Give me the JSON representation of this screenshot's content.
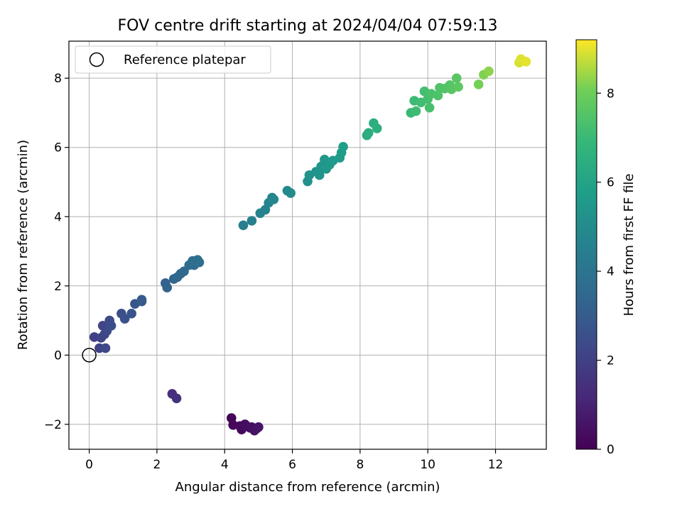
{
  "chart_data": {
    "type": "scatter",
    "title": "FOV centre drift starting at 2024/04/04 07:59:13",
    "xlabel": "Angular distance from reference (arcmin)",
    "ylabel": "Rotation from reference (arcmin)",
    "xlim": [
      -0.6,
      13.5
    ],
    "ylim": [
      -2.72,
      9.07
    ],
    "xticks": [
      0,
      2,
      4,
      6,
      8,
      10,
      12
    ],
    "yticks": [
      -2,
      0,
      2,
      4,
      6,
      8
    ],
    "xtick_labels": [
      "0",
      "2",
      "4",
      "6",
      "8",
      "10",
      "12"
    ],
    "ytick_labels": [
      "−2",
      "0",
      "2",
      "4",
      "6",
      "8"
    ],
    "grid": true,
    "legend": {
      "position": "upper-left",
      "entries": [
        {
          "label": "Reference platepar",
          "marker": "open-circle",
          "x": 0,
          "y": 0
        }
      ]
    },
    "colorbar": {
      "label": "Hours from first FF file",
      "colormap": "viridis",
      "range": [
        0,
        9.2
      ],
      "ticks": [
        0,
        2,
        4,
        6,
        8
      ],
      "tick_labels": [
        "0",
        "2",
        "4",
        "6",
        "8"
      ]
    },
    "points": [
      {
        "x": 4.2,
        "y": -1.82,
        "t": 0.1
      },
      {
        "x": 4.25,
        "y": -2.02,
        "t": 0.15
      },
      {
        "x": 4.45,
        "y": -2.05,
        "t": 0.2
      },
      {
        "x": 4.5,
        "y": -2.15,
        "t": 0.25
      },
      {
        "x": 4.6,
        "y": -2.0,
        "t": 0.3
      },
      {
        "x": 4.65,
        "y": -2.05,
        "t": 0.35
      },
      {
        "x": 4.75,
        "y": -2.1,
        "t": 0.4
      },
      {
        "x": 4.8,
        "y": -2.08,
        "t": 0.45
      },
      {
        "x": 4.88,
        "y": -2.18,
        "t": 0.5
      },
      {
        "x": 4.95,
        "y": -2.12,
        "t": 0.55
      },
      {
        "x": 5.0,
        "y": -2.08,
        "t": 0.6
      },
      {
        "x": 2.45,
        "y": -1.12,
        "t": 1.4
      },
      {
        "x": 2.58,
        "y": -1.25,
        "t": 1.5
      },
      {
        "x": 0.15,
        "y": 0.52,
        "t": 2.0
      },
      {
        "x": 0.3,
        "y": 0.2,
        "t": 2.05
      },
      {
        "x": 0.35,
        "y": 0.5,
        "t": 2.1
      },
      {
        "x": 0.4,
        "y": 0.85,
        "t": 2.15
      },
      {
        "x": 0.45,
        "y": 0.6,
        "t": 2.2
      },
      {
        "x": 0.48,
        "y": 0.2,
        "t": 2.25
      },
      {
        "x": 0.52,
        "y": 0.7,
        "t": 2.3
      },
      {
        "x": 0.6,
        "y": 1.0,
        "t": 2.4
      },
      {
        "x": 0.65,
        "y": 0.85,
        "t": 2.45
      },
      {
        "x": 0.95,
        "y": 1.2,
        "t": 2.55
      },
      {
        "x": 1.05,
        "y": 1.05,
        "t": 2.6
      },
      {
        "x": 1.25,
        "y": 1.2,
        "t": 2.7
      },
      {
        "x": 1.35,
        "y": 1.48,
        "t": 2.8
      },
      {
        "x": 1.55,
        "y": 1.6,
        "t": 2.9
      },
      {
        "x": 1.55,
        "y": 1.55,
        "t": 2.95
      },
      {
        "x": 2.25,
        "y": 2.08,
        "t": 3.2
      },
      {
        "x": 2.3,
        "y": 1.95,
        "t": 3.25
      },
      {
        "x": 2.5,
        "y": 2.2,
        "t": 3.35
      },
      {
        "x": 2.6,
        "y": 2.25,
        "t": 3.4
      },
      {
        "x": 2.7,
        "y": 2.35,
        "t": 3.45
      },
      {
        "x": 2.8,
        "y": 2.42,
        "t": 3.5
      },
      {
        "x": 2.95,
        "y": 2.6,
        "t": 3.6
      },
      {
        "x": 3.05,
        "y": 2.72,
        "t": 3.65
      },
      {
        "x": 3.1,
        "y": 2.6,
        "t": 3.7
      },
      {
        "x": 3.2,
        "y": 2.75,
        "t": 3.75
      },
      {
        "x": 3.25,
        "y": 2.68,
        "t": 3.8
      },
      {
        "x": 4.55,
        "y": 3.75,
        "t": 4.4
      },
      {
        "x": 4.8,
        "y": 3.88,
        "t": 4.5
      },
      {
        "x": 5.05,
        "y": 4.1,
        "t": 4.6
      },
      {
        "x": 5.2,
        "y": 4.2,
        "t": 4.65
      },
      {
        "x": 5.3,
        "y": 4.4,
        "t": 4.7
      },
      {
        "x": 5.4,
        "y": 4.55,
        "t": 4.75
      },
      {
        "x": 5.45,
        "y": 4.5,
        "t": 4.8
      },
      {
        "x": 5.85,
        "y": 4.75,
        "t": 4.9
      },
      {
        "x": 5.95,
        "y": 4.68,
        "t": 4.95
      },
      {
        "x": 6.45,
        "y": 5.02,
        "t": 5.2
      },
      {
        "x": 6.5,
        "y": 5.2,
        "t": 5.25
      },
      {
        "x": 6.7,
        "y": 5.3,
        "t": 5.3
      },
      {
        "x": 6.8,
        "y": 5.2,
        "t": 5.35
      },
      {
        "x": 6.85,
        "y": 5.45,
        "t": 5.4
      },
      {
        "x": 6.95,
        "y": 5.65,
        "t": 5.45
      },
      {
        "x": 7.0,
        "y": 5.38,
        "t": 5.5
      },
      {
        "x": 7.1,
        "y": 5.5,
        "t": 5.55
      },
      {
        "x": 7.2,
        "y": 5.62,
        "t": 5.6
      },
      {
        "x": 7.4,
        "y": 5.7,
        "t": 5.65
      },
      {
        "x": 7.45,
        "y": 5.85,
        "t": 5.7
      },
      {
        "x": 7.5,
        "y": 6.02,
        "t": 5.75
      },
      {
        "x": 8.2,
        "y": 6.35,
        "t": 6.4
      },
      {
        "x": 8.25,
        "y": 6.42,
        "t": 6.45
      },
      {
        "x": 8.4,
        "y": 6.7,
        "t": 6.5
      },
      {
        "x": 8.5,
        "y": 6.55,
        "t": 6.55
      },
      {
        "x": 9.5,
        "y": 7.0,
        "t": 7.0
      },
      {
        "x": 9.6,
        "y": 7.35,
        "t": 7.05
      },
      {
        "x": 9.65,
        "y": 7.05,
        "t": 7.1
      },
      {
        "x": 9.8,
        "y": 7.3,
        "t": 7.15
      },
      {
        "x": 9.9,
        "y": 7.62,
        "t": 7.2
      },
      {
        "x": 10.0,
        "y": 7.4,
        "t": 7.25
      },
      {
        "x": 10.05,
        "y": 7.15,
        "t": 7.3
      },
      {
        "x": 10.1,
        "y": 7.55,
        "t": 7.35
      },
      {
        "x": 10.3,
        "y": 7.5,
        "t": 7.4
      },
      {
        "x": 10.35,
        "y": 7.72,
        "t": 7.45
      },
      {
        "x": 10.5,
        "y": 7.7,
        "t": 7.5
      },
      {
        "x": 10.65,
        "y": 7.8,
        "t": 7.55
      },
      {
        "x": 10.7,
        "y": 7.68,
        "t": 7.6
      },
      {
        "x": 10.85,
        "y": 8.0,
        "t": 7.65
      },
      {
        "x": 10.9,
        "y": 7.75,
        "t": 7.7
      },
      {
        "x": 11.5,
        "y": 7.82,
        "t": 8.1
      },
      {
        "x": 11.65,
        "y": 8.1,
        "t": 8.2
      },
      {
        "x": 11.8,
        "y": 8.2,
        "t": 8.3
      },
      {
        "x": 12.7,
        "y": 8.45,
        "t": 8.9
      },
      {
        "x": 12.75,
        "y": 8.55,
        "t": 8.95
      },
      {
        "x": 12.9,
        "y": 8.48,
        "t": 9.0
      }
    ]
  }
}
